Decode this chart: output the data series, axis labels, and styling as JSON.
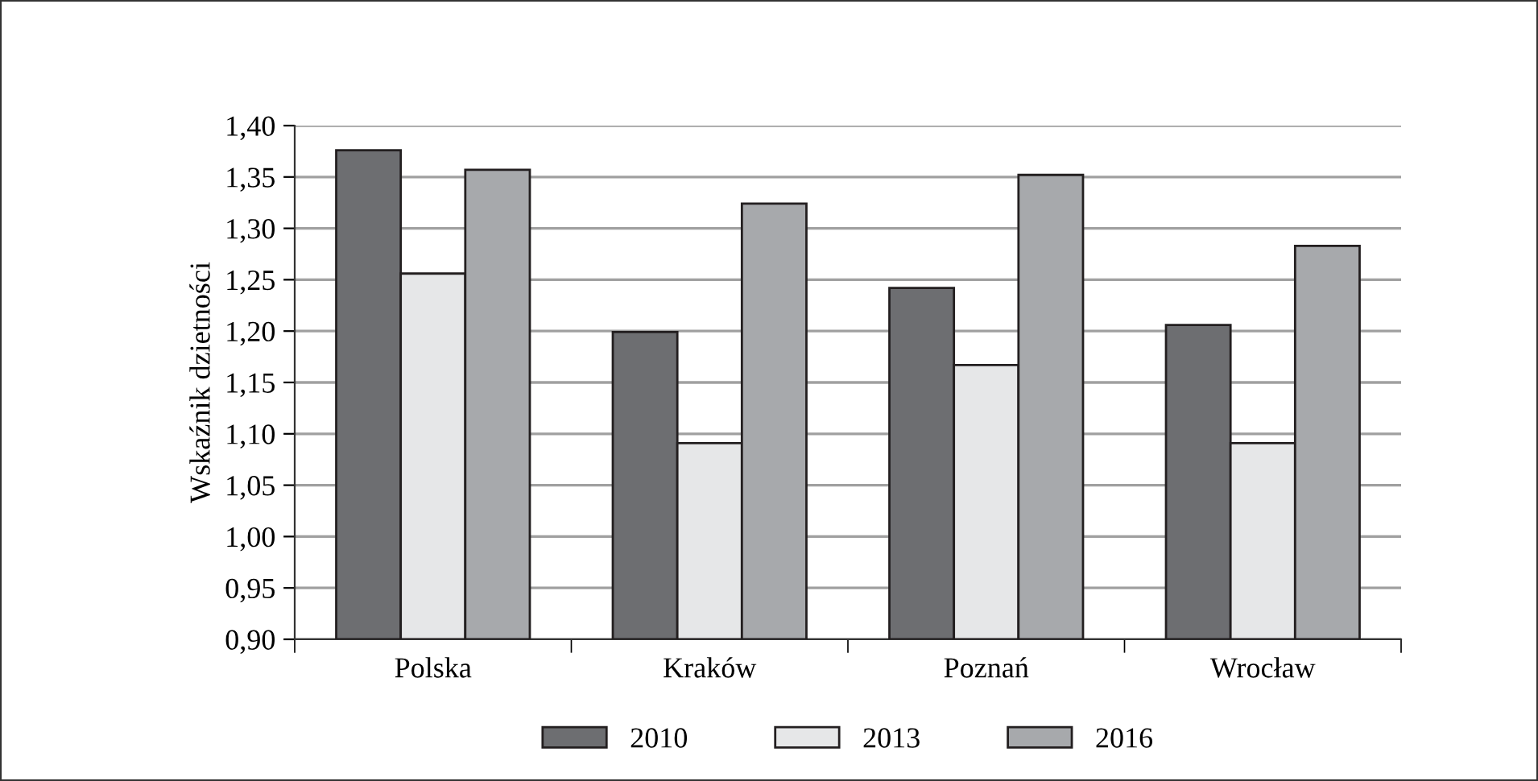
{
  "chart_data": {
    "type": "bar",
    "ylabel": "Wskaźnik dzietności",
    "categories": [
      "Polska",
      "Kraków",
      "Poznań",
      "Wrocław"
    ],
    "series": [
      {
        "name": "2010",
        "color": "#6d6e71",
        "values": [
          1.376,
          1.199,
          1.242,
          1.206
        ]
      },
      {
        "name": "2013",
        "color": "#e6e7e8",
        "values": [
          1.256,
          1.091,
          1.167,
          1.091
        ]
      },
      {
        "name": "2016",
        "color": "#a7a9ac",
        "values": [
          1.357,
          1.324,
          1.352,
          1.283
        ]
      }
    ],
    "ylim": [
      0.9,
      1.4
    ],
    "yticks": [
      {
        "value": 0.9,
        "label": "0,90"
      },
      {
        "value": 0.95,
        "label": "0,95"
      },
      {
        "value": 1.0,
        "label": "1,00"
      },
      {
        "value": 1.05,
        "label": "1,05"
      },
      {
        "value": 1.1,
        "label": "1,10"
      },
      {
        "value": 1.15,
        "label": "1,15"
      },
      {
        "value": 1.2,
        "label": "1,20"
      },
      {
        "value": 1.25,
        "label": "1,25"
      },
      {
        "value": 1.3,
        "label": "1,30"
      },
      {
        "value": 1.35,
        "label": "1,35"
      },
      {
        "value": 1.4,
        "label": "1,40"
      }
    ],
    "grid": "y",
    "legend": "bottom"
  }
}
